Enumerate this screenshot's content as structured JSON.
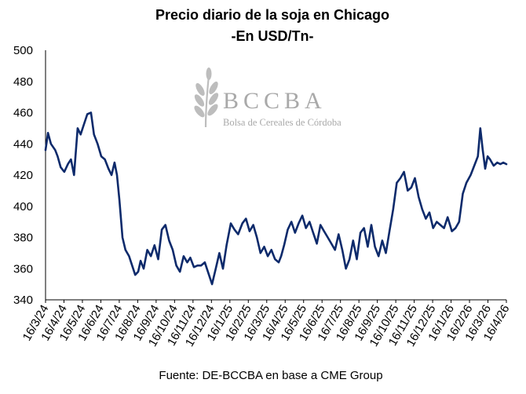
{
  "chart_data": {
    "type": "line",
    "title": "Precio diario de la soja en Chicago",
    "subtitle": "-En USD/Tn-",
    "source": "Fuente: DE-BCCBA en base a CME Group",
    "watermark": {
      "letters": "BCCBA",
      "name": "Bolsa de Cereales de Córdoba",
      "icon": "wheat-icon"
    },
    "line_color": "#0d2a6b",
    "ylim": [
      340,
      500
    ],
    "yticks": [
      340,
      360,
      380,
      400,
      420,
      440,
      460,
      480,
      500
    ],
    "xlim": [
      "2024-03-16",
      "2026-04-16"
    ],
    "xticks": [
      "16/3/24",
      "16/4/24",
      "16/5/24",
      "16/6/24",
      "16/7/24",
      "16/8/24",
      "16/9/24",
      "16/10/24",
      "16/11/24",
      "16/12/24",
      "16/1/25",
      "16/2/25",
      "16/3/25",
      "16/4/25",
      "16/5/25",
      "16/6/25",
      "16/7/25",
      "16/8/25",
      "16/9/25",
      "16/10/25",
      "16/11/25",
      "16/12/25",
      "16/1/26",
      "16/2/26",
      "16/3/26",
      "16/4/26"
    ],
    "grid": false,
    "series": [
      {
        "x": [
          "2024-03-16",
          "2024-03-20",
          "2024-03-25",
          "2024-04-01",
          "2024-04-05",
          "2024-04-10",
          "2024-04-16",
          "2024-04-22",
          "2024-04-27",
          "2024-05-02",
          "2024-05-08",
          "2024-05-13",
          "2024-05-18",
          "2024-05-24",
          "2024-05-30",
          "2024-06-04",
          "2024-06-10",
          "2024-06-16",
          "2024-06-22",
          "2024-06-28",
          "2024-07-03",
          "2024-07-08",
          "2024-07-12",
          "2024-07-16",
          "2024-07-21",
          "2024-07-26",
          "2024-08-01",
          "2024-08-06",
          "2024-08-11",
          "2024-08-16",
          "2024-08-20",
          "2024-08-25",
          "2024-08-31",
          "2024-09-06",
          "2024-09-12",
          "2024-09-18",
          "2024-09-24",
          "2024-09-30",
          "2024-10-06",
          "2024-10-12",
          "2024-10-18",
          "2024-10-24",
          "2024-10-30",
          "2024-11-05",
          "2024-11-10",
          "2024-11-16",
          "2024-11-22",
          "2024-11-28",
          "2024-12-04",
          "2024-12-10",
          "2024-12-16",
          "2024-12-22",
          "2024-12-28",
          "2025-01-03",
          "2025-01-09",
          "2025-01-16",
          "2025-01-22",
          "2025-01-28",
          "2025-02-04",
          "2025-02-10",
          "2025-02-16",
          "2025-02-22",
          "2025-02-28",
          "2025-03-06",
          "2025-03-12",
          "2025-03-18",
          "2025-03-24",
          "2025-03-30",
          "2025-04-05",
          "2025-04-09",
          "2025-04-14",
          "2025-04-20",
          "2025-04-26",
          "2025-05-02",
          "2025-05-08",
          "2025-05-14",
          "2025-05-20",
          "2025-05-26",
          "2025-06-01",
          "2025-06-07",
          "2025-06-13",
          "2025-06-19",
          "2025-06-25",
          "2025-07-01",
          "2025-07-07",
          "2025-07-13",
          "2025-07-19",
          "2025-07-25",
          "2025-07-31",
          "2025-08-06",
          "2025-08-12",
          "2025-08-18",
          "2025-08-24",
          "2025-08-30",
          "2025-09-05",
          "2025-09-11",
          "2025-09-17",
          "2025-09-23",
          "2025-09-29",
          "2025-10-05",
          "2025-10-11",
          "2025-10-17",
          "2025-10-23",
          "2025-10-29",
          "2025-11-04",
          "2025-11-10",
          "2025-11-16",
          "2025-11-22",
          "2025-11-28",
          "2025-12-04",
          "2025-12-10",
          "2025-12-16",
          "2025-12-22",
          "2025-12-28",
          "2026-01-03",
          "2026-01-09",
          "2026-01-16",
          "2026-01-22",
          "2026-01-28",
          "2026-02-03",
          "2026-02-09",
          "2026-02-16",
          "2026-02-22",
          "2026-02-28",
          "2026-03-04",
          "2026-03-08",
          "2026-03-12",
          "2026-03-16",
          "2026-03-20",
          "2026-03-26",
          "2026-04-01",
          "2026-04-06",
          "2026-04-11",
          "2026-04-16"
        ],
        "values": [
          436,
          447,
          440,
          436,
          432,
          425,
          422,
          427,
          430,
          420,
          450,
          446,
          452,
          459,
          460,
          446,
          440,
          432,
          430,
          424,
          420,
          428,
          420,
          404,
          380,
          372,
          368,
          362,
          356,
          358,
          365,
          360,
          372,
          368,
          375,
          366,
          385,
          388,
          378,
          372,
          362,
          358,
          368,
          364,
          367,
          361,
          362,
          362,
          364,
          357,
          350,
          360,
          370,
          360,
          375,
          389,
          385,
          382,
          389,
          392,
          384,
          388,
          380,
          370,
          374,
          368,
          372,
          366,
          364,
          368,
          375,
          385,
          390,
          383,
          389,
          394,
          386,
          390,
          383,
          376,
          388,
          384,
          380,
          376,
          372,
          382,
          372,
          360,
          366,
          378,
          366,
          383,
          386,
          374,
          388,
          374,
          368,
          378,
          370,
          384,
          398,
          415,
          418,
          422,
          410,
          412,
          418,
          406,
          398,
          392,
          396,
          386,
          390,
          388,
          386,
          393,
          384,
          386,
          390,
          408,
          415,
          420,
          426,
          432,
          450,
          436,
          424,
          432,
          430,
          426,
          428,
          427,
          428,
          427
        ]
      }
    ]
  }
}
